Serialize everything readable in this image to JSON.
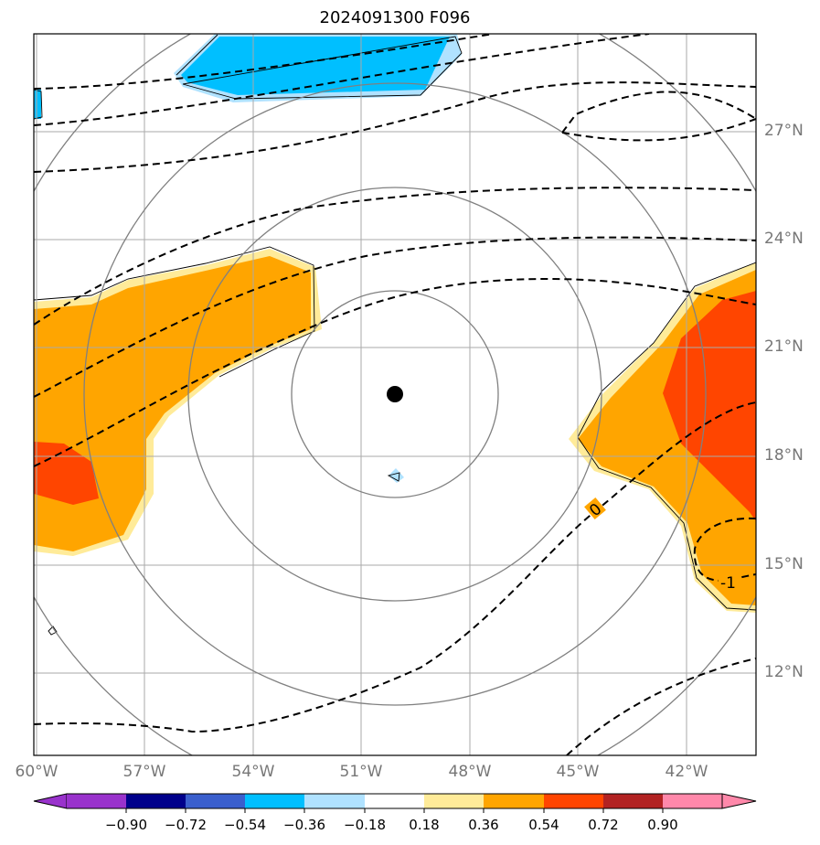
{
  "title": "2024091300 F096",
  "lat_labels": [
    "27°N",
    "24°N",
    "21°N",
    "18°N",
    "15°N",
    "12°N"
  ],
  "lon_labels": [
    "60°W",
    "57°W",
    "54°W",
    "51°W",
    "48°W",
    "45°W",
    "42°W"
  ],
  "contour_labels": [
    "0",
    "-1"
  ],
  "colorbar": {
    "ticks": [
      "−0.90",
      "−0.72",
      "−0.54",
      "−0.36",
      "−0.18",
      "0.18",
      "0.36",
      "0.54",
      "0.72",
      "0.90"
    ],
    "colors": [
      "#9932cc",
      "#00008b",
      "#3a5fcd",
      "#00bfff",
      "#b0e2ff",
      "#ffffff",
      "#ffeb99",
      "#ffa500",
      "#ff4500",
      "#b22222",
      "#ff88aa"
    ]
  },
  "map": {
    "lon_min": -60,
    "lon_max": -40,
    "lat_min": 10,
    "lat_max": 30,
    "center_marker": {
      "lon": -50.1,
      "lat": 19.7
    }
  }
}
